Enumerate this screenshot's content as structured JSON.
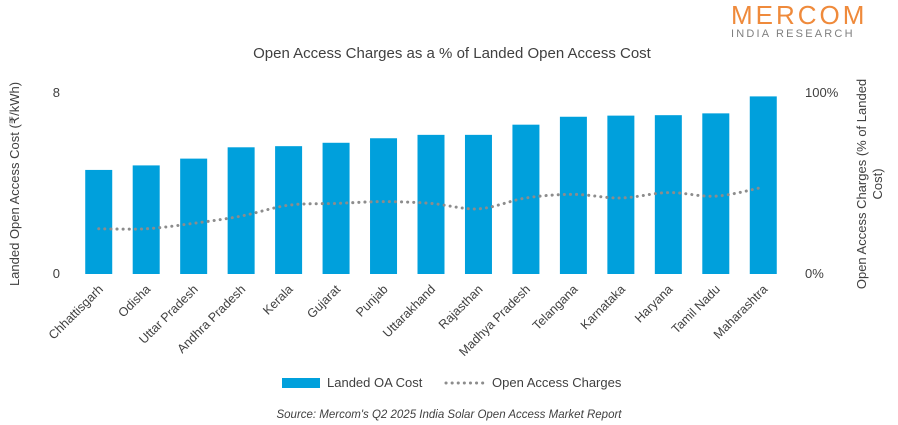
{
  "logo": {
    "name": "MERCOM",
    "tagline": "INDIA RESEARCH"
  },
  "source": "Source: Mercom's Q2 2025  India Solar Open Access Market Report",
  "colors": {
    "bar": "#00a0dc",
    "line": "#8c8c8c",
    "logo": "#ef8a3b"
  },
  "chart_data": {
    "type": "bar",
    "title": "Open Access Charges as a % of Landed Open Access Cost",
    "xlabel": "",
    "ylabel": "Landed Open Access Cost (₹/kWh)",
    "y2label": "Open Access Charges (% of Landed Cost)",
    "ylim": [
      0,
      8
    ],
    "y2lim": [
      0,
      100
    ],
    "yticks": [
      "0",
      "8"
    ],
    "y2ticks": [
      "0%",
      "100%"
    ],
    "grid": false,
    "legend_position": "bottom",
    "categories": [
      "Chhattisgarh",
      "Odisha",
      "Uttar Pradesh",
      "Andhra Pradesh",
      "Kerala",
      "Gujarat",
      "Punjab",
      "Uttarakhand",
      "Rajasthan",
      "Madhya Pradesh",
      "Telangana",
      "Karnataka",
      "Haryana",
      "Tamil Nadu",
      "Maharashtra"
    ],
    "series": [
      {
        "name": "Landed OA Cost",
        "type": "bar",
        "axis": "left",
        "values": [
          4.6,
          4.8,
          5.1,
          5.6,
          5.65,
          5.8,
          6.0,
          6.15,
          6.15,
          6.6,
          6.95,
          7.0,
          7.02,
          7.1,
          7.85
        ]
      },
      {
        "name": "Open Access Charges",
        "type": "line",
        "style": "dotted",
        "axis": "right",
        "values": [
          25,
          25,
          28,
          32,
          38,
          39,
          40,
          39,
          36,
          42,
          44,
          42,
          45,
          43,
          48
        ]
      }
    ]
  }
}
